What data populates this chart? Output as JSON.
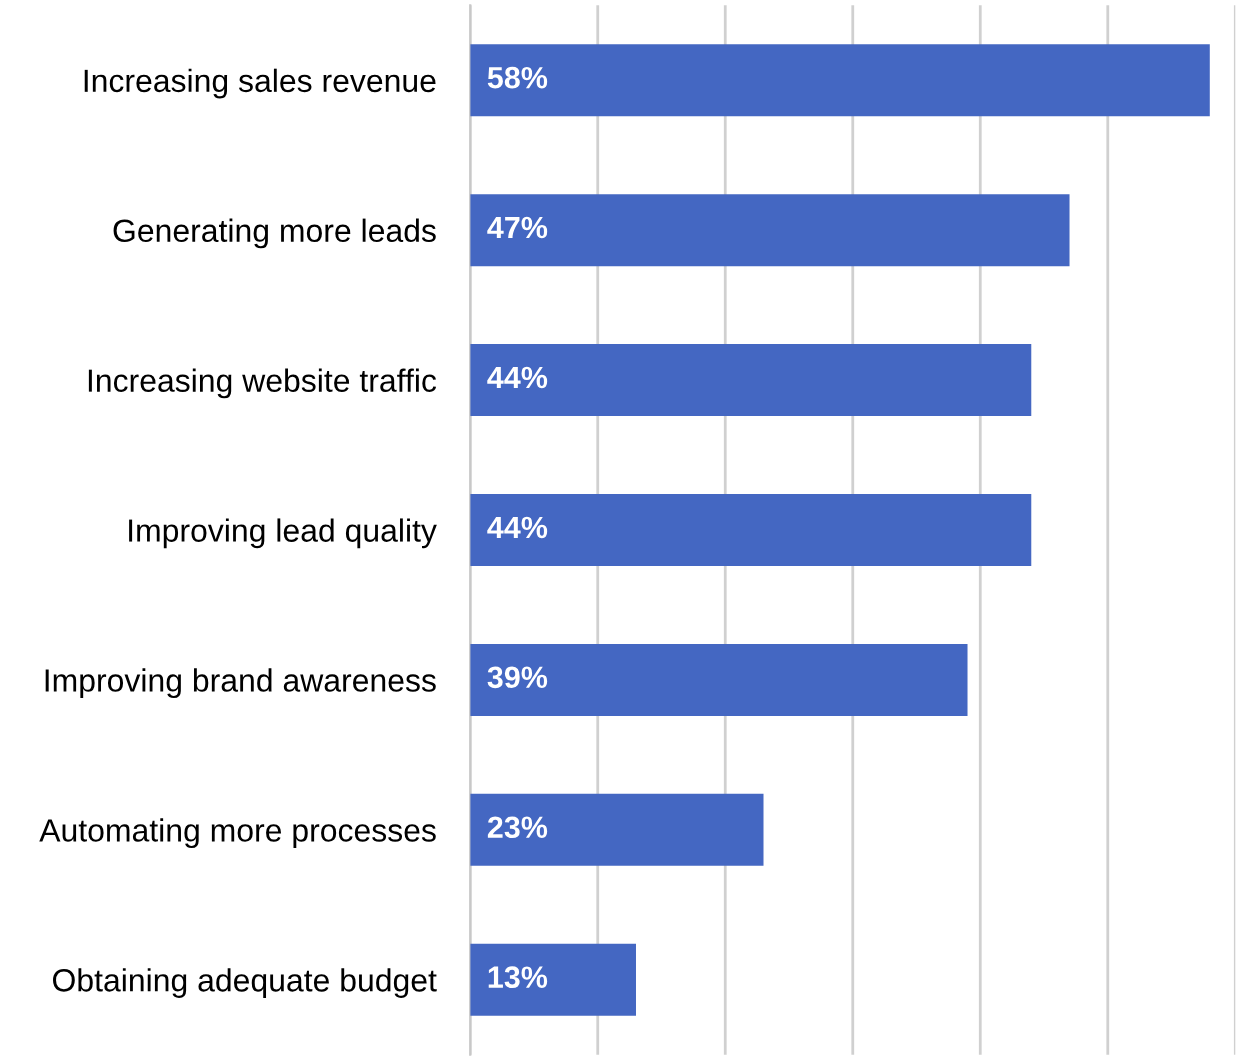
{
  "chart_data": {
    "type": "bar",
    "orientation": "horizontal",
    "categories": [
      "Increasing sales revenue",
      "Generating more leads",
      "Increasing website traffic",
      "Improving lead quality",
      "Improving brand awareness",
      "Automating more processes",
      "Obtaining adequate budget"
    ],
    "values": [
      58,
      47,
      44,
      44,
      39,
      23,
      13
    ],
    "value_labels": [
      "58%",
      "47%",
      "44%",
      "44%",
      "39%",
      "23%",
      "13%"
    ],
    "color": "#4467c2",
    "xlim": [
      0,
      60
    ],
    "xticks": [
      {
        "value": 0,
        "label": null
      },
      {
        "value": 10,
        "label": null
      },
      {
        "value": 20,
        "label": null
      },
      {
        "value": 30,
        "label": null
      },
      {
        "value": 40,
        "label": null
      },
      {
        "value": 50,
        "label": null
      },
      {
        "value": 60,
        "label": null
      }
    ],
    "tick_labels": "y",
    "grid": "x"
  }
}
